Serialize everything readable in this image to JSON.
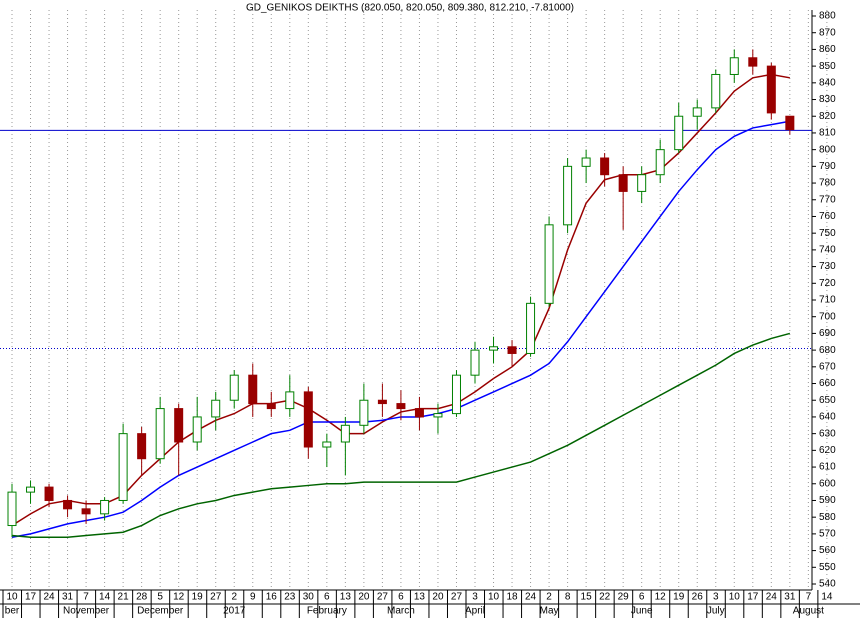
{
  "chart_data": {
    "type": "candlestick",
    "title": "GD_GENIKOS DEIKTHS (820.050, 820.050, 809.380, 812.210, -7.81000)",
    "categories": [
      "10",
      "17",
      "24",
      "31",
      "7",
      "14",
      "21",
      "28",
      "5",
      "12",
      "19",
      "27",
      "2",
      "9",
      "16",
      "23",
      "30",
      "6",
      "13",
      "20",
      "27",
      "6",
      "13",
      "20",
      "27",
      "3",
      "10",
      "18",
      "24",
      "2",
      "8",
      "15",
      "22",
      "29",
      "6",
      "12",
      "19",
      "26",
      "3",
      "10",
      "17",
      "24",
      "31",
      "7",
      "14"
    ],
    "month_labels": [
      "ber",
      null,
      null,
      null,
      "November",
      null,
      null,
      null,
      "December",
      null,
      null,
      null,
      "2017",
      null,
      null,
      null,
      null,
      "February",
      null,
      null,
      null,
      "March",
      null,
      null,
      null,
      "April",
      null,
      null,
      null,
      "May",
      null,
      null,
      null,
      null,
      "June",
      null,
      null,
      null,
      "July",
      null,
      null,
      null,
      null,
      "August",
      null
    ],
    "open": [
      575,
      595,
      598,
      590,
      585,
      582,
      590,
      630,
      615,
      645,
      625,
      640,
      650,
      665,
      648,
      645,
      655,
      622,
      625,
      635,
      650,
      648,
      645,
      640,
      642,
      665,
      680,
      682,
      678,
      708,
      755,
      790,
      795,
      785,
      775,
      785,
      800,
      820,
      825,
      845,
      855,
      850,
      820,
      null,
      null
    ],
    "high": [
      600,
      602,
      600,
      593,
      590,
      592,
      636,
      634,
      652,
      648,
      652,
      655,
      668,
      672,
      655,
      665,
      658,
      630,
      640,
      660,
      660,
      656,
      652,
      648,
      668,
      685,
      688,
      686,
      712,
      760,
      795,
      800,
      798,
      790,
      790,
      806,
      828,
      830,
      848,
      860,
      860,
      852,
      820,
      null,
      null
    ],
    "low": [
      568,
      588,
      586,
      580,
      576,
      578,
      588,
      605,
      612,
      605,
      620,
      632,
      645,
      640,
      640,
      640,
      615,
      610,
      605,
      630,
      640,
      638,
      632,
      630,
      640,
      660,
      672,
      670,
      676,
      706,
      750,
      780,
      778,
      752,
      768,
      780,
      798,
      812,
      822,
      840,
      845,
      818,
      809,
      null,
      null
    ],
    "close": [
      595,
      598,
      590,
      585,
      582,
      590,
      630,
      615,
      645,
      625,
      640,
      650,
      665,
      648,
      645,
      655,
      622,
      625,
      635,
      650,
      648,
      645,
      640,
      642,
      665,
      680,
      682,
      678,
      708,
      755,
      790,
      795,
      785,
      775,
      785,
      800,
      820,
      825,
      845,
      855,
      850,
      822,
      812,
      null,
      null
    ],
    "up_color": "#008000",
    "down_color": "#990000",
    "moving_averages": [
      {
        "color": "#990000",
        "values": [
          575,
          582,
          588,
          590,
          588,
          588,
          593,
          605,
          615,
          625,
          632,
          638,
          642,
          648,
          648,
          650,
          645,
          638,
          630,
          630,
          637,
          643,
          645,
          645,
          648,
          655,
          663,
          670,
          680,
          705,
          740,
          768,
          782,
          785,
          785,
          788,
          798,
          810,
          822,
          835,
          843,
          845,
          843,
          null,
          null
        ]
      },
      {
        "color": "#0000ff",
        "values": [
          568,
          570,
          573,
          576,
          578,
          580,
          583,
          590,
          598,
          605,
          610,
          615,
          620,
          625,
          630,
          632,
          637,
          637,
          637,
          637,
          638,
          640,
          640,
          642,
          645,
          650,
          655,
          660,
          665,
          672,
          685,
          700,
          715,
          730,
          745,
          760,
          775,
          788,
          800,
          808,
          813,
          815,
          817,
          null,
          null
        ]
      },
      {
        "color": "#006400",
        "values": [
          569,
          568,
          568,
          568,
          569,
          570,
          571,
          575,
          581,
          585,
          588,
          590,
          593,
          595,
          597,
          598,
          599,
          600,
          600,
          601,
          601,
          601,
          601,
          601,
          601,
          604,
          607,
          610,
          613,
          618,
          623,
          629,
          635,
          641,
          647,
          653,
          659,
          665,
          671,
          678,
          683,
          687,
          690,
          null,
          null
        ]
      }
    ],
    "hlines": [
      {
        "value": 811.5,
        "color": "#0000cc",
        "style": "solid"
      },
      {
        "value": 681,
        "color": "#0000cc",
        "style": "dotted"
      }
    ],
    "ylim": [
      540,
      880
    ],
    "yticks": [
      540,
      550,
      560,
      570,
      580,
      590,
      600,
      610,
      620,
      630,
      640,
      650,
      660,
      670,
      680,
      690,
      700,
      710,
      720,
      730,
      740,
      750,
      760,
      770,
      780,
      790,
      800,
      810,
      820,
      830,
      840,
      850,
      860,
      870,
      880
    ],
    "grid": true
  }
}
